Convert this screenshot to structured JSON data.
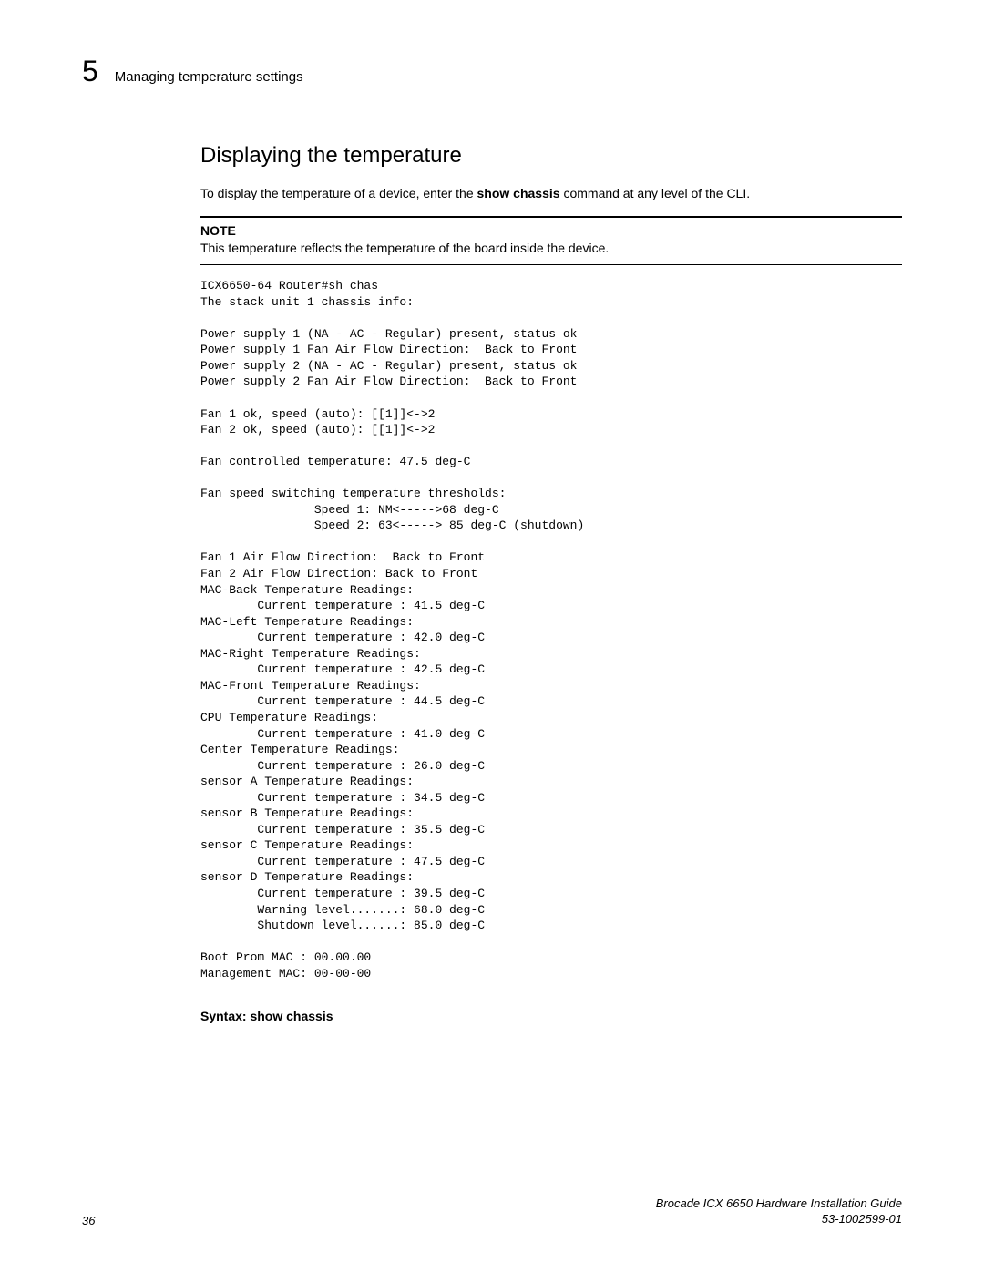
{
  "header": {
    "chapter_number": "5",
    "title": "Managing temperature settings"
  },
  "section": {
    "title": "Displaying the temperature",
    "intro_prefix": "To display the temperature of a device, enter the ",
    "intro_command": "show chassis",
    "intro_suffix": " command at any level of the CLI."
  },
  "note": {
    "label": "NOTE",
    "text": "This temperature reflects the temperature of the board inside the device."
  },
  "code": "ICX6650-64 Router#sh chas\nThe stack unit 1 chassis info:\n\nPower supply 1 (NA - AC - Regular) present, status ok\nPower supply 1 Fan Air Flow Direction:  Back to Front\nPower supply 2 (NA - AC - Regular) present, status ok\nPower supply 2 Fan Air Flow Direction:  Back to Front\n\nFan 1 ok, speed (auto): [[1]]<->2\nFan 2 ok, speed (auto): [[1]]<->2\n\nFan controlled temperature: 47.5 deg-C\n\nFan speed switching temperature thresholds:\n                Speed 1: NM<----->68 deg-C\n                Speed 2: 63<-----> 85 deg-C (shutdown)\n\nFan 1 Air Flow Direction:  Back to Front\nFan 2 Air Flow Direction: Back to Front\nMAC-Back Temperature Readings:\n        Current temperature : 41.5 deg-C\nMAC-Left Temperature Readings:\n        Current temperature : 42.0 deg-C\nMAC-Right Temperature Readings:\n        Current temperature : 42.5 deg-C\nMAC-Front Temperature Readings:\n        Current temperature : 44.5 deg-C\nCPU Temperature Readings:\n        Current temperature : 41.0 deg-C\nCenter Temperature Readings:\n        Current temperature : 26.0 deg-C\nsensor A Temperature Readings:\n        Current temperature : 34.5 deg-C\nsensor B Temperature Readings:\n        Current temperature : 35.5 deg-C\nsensor C Temperature Readings:\n        Current temperature : 47.5 deg-C\nsensor D Temperature Readings:\n        Current temperature : 39.5 deg-C\n        Warning level.......: 68.0 deg-C\n        Shutdown level......: 85.0 deg-C\n\nBoot Prom MAC : 00.00.00\nManagement MAC: 00-00-00",
  "syntax": {
    "label": "Syntax:",
    "command": "show chassis"
  },
  "footer": {
    "page_number": "36",
    "doc_title": "Brocade ICX 6650 Hardware Installation Guide",
    "doc_number": "53-1002599-01"
  }
}
